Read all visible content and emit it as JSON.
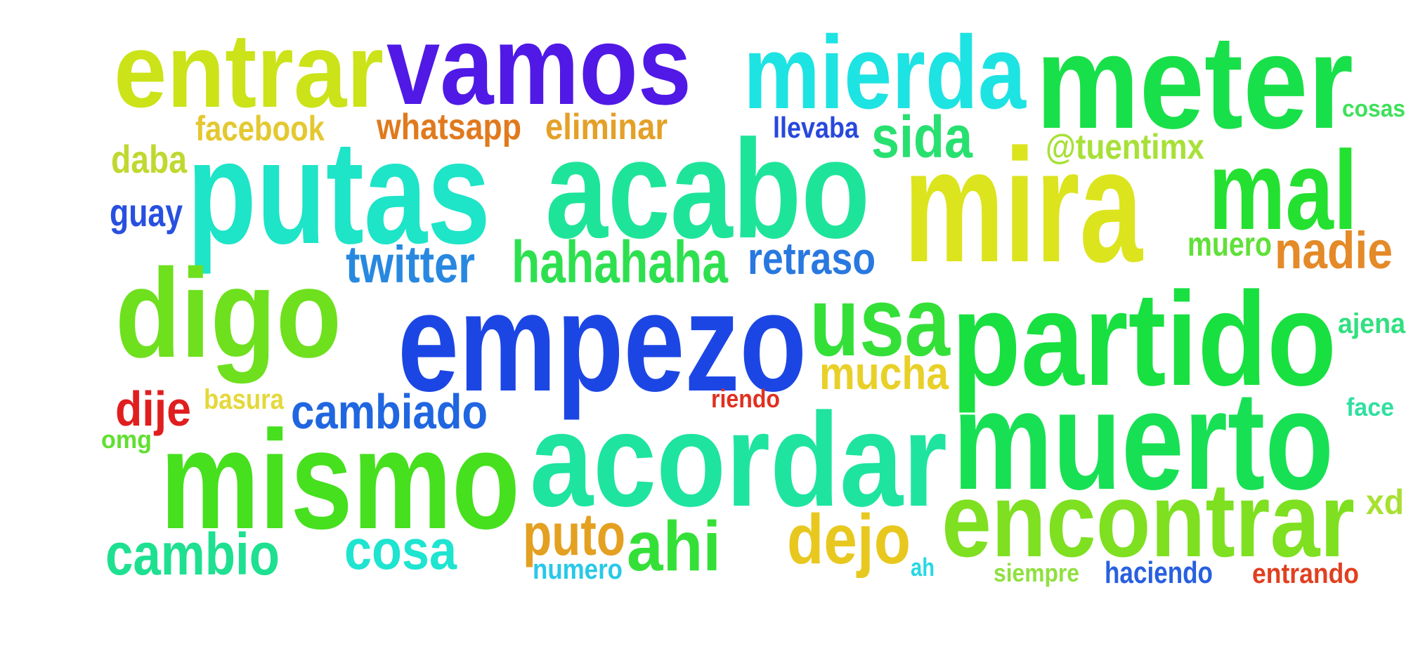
{
  "words": [
    {
      "id": "entrar",
      "text": "entrar",
      "color": "#cbe318"
    },
    {
      "id": "vamos",
      "text": "vamos",
      "color": "#5019e6"
    },
    {
      "id": "mierda",
      "text": "mierda",
      "color": "#1ee3e3"
    },
    {
      "id": "meter",
      "text": "meter",
      "color": "#18e04a"
    },
    {
      "id": "cosas",
      "text": "cosas",
      "color": "#3ee05a"
    },
    {
      "id": "facebook",
      "text": "facebook",
      "color": "#e4c830"
    },
    {
      "id": "whatsapp",
      "text": "whatsapp",
      "color": "#e07a1e"
    },
    {
      "id": "eliminar",
      "text": "eliminar",
      "color": "#e4a028"
    },
    {
      "id": "llevaba",
      "text": "llevaba",
      "color": "#2848dc"
    },
    {
      "id": "sida",
      "text": "sida",
      "color": "#28e070"
    },
    {
      "id": "tuentimx",
      "text": "@tuentimx",
      "color": "#a8e038"
    },
    {
      "id": "daba",
      "text": "daba",
      "color": "#c0d830"
    },
    {
      "id": "putas",
      "text": "putas",
      "color": "#1ee4c8"
    },
    {
      "id": "acabo",
      "text": "acabo",
      "color": "#1ee49a"
    },
    {
      "id": "mira",
      "text": "mira",
      "color": "#dce41e"
    },
    {
      "id": "mal",
      "text": "mal",
      "color": "#24e030"
    },
    {
      "id": "guay",
      "text": "guay",
      "color": "#2850e0"
    },
    {
      "id": "twitter",
      "text": "twitter",
      "color": "#2888e0"
    },
    {
      "id": "hahahaha",
      "text": "hahahaha",
      "color": "#2ee050"
    },
    {
      "id": "retraso",
      "text": "retraso",
      "color": "#2878e0"
    },
    {
      "id": "muero",
      "text": "muero",
      "color": "#60e038"
    },
    {
      "id": "nadie",
      "text": "nadie",
      "color": "#e48a28"
    },
    {
      "id": "digo",
      "text": "digo",
      "color": "#6ee01e"
    },
    {
      "id": "empezo",
      "text": "empezo",
      "color": "#1c46e4"
    },
    {
      "id": "usa",
      "text": "usa",
      "color": "#34e038"
    },
    {
      "id": "partido",
      "text": "partido",
      "color": "#18e040"
    },
    {
      "id": "ajena",
      "text": "ajena",
      "color": "#30e080"
    },
    {
      "id": "mucha",
      "text": "mucha",
      "color": "#e8d028"
    },
    {
      "id": "dije",
      "text": "dije",
      "color": "#e01e1e"
    },
    {
      "id": "basura",
      "text": "basura",
      "color": "#e4d83a"
    },
    {
      "id": "cambiado",
      "text": "cambiado",
      "color": "#2066e0"
    },
    {
      "id": "riendo",
      "text": "riendo",
      "color": "#e03020"
    },
    {
      "id": "muerto",
      "text": "muerto",
      "color": "#18e054"
    },
    {
      "id": "face",
      "text": "face",
      "color": "#30e0a0"
    },
    {
      "id": "omg",
      "text": "omg",
      "color": "#60e030"
    },
    {
      "id": "mismo",
      "text": "mismo",
      "color": "#46e01e"
    },
    {
      "id": "acordar",
      "text": "acordar",
      "color": "#1ee4a0"
    },
    {
      "id": "encontrar",
      "text": "encontrar",
      "color": "#7ee020"
    },
    {
      "id": "xd",
      "text": "xd",
      "color": "#a8e030"
    },
    {
      "id": "cambio",
      "text": "cambio",
      "color": "#1ee090"
    },
    {
      "id": "cosa",
      "text": "cosa",
      "color": "#1ee4d0"
    },
    {
      "id": "puto",
      "text": "puto",
      "color": "#e4a020"
    },
    {
      "id": "ahi",
      "text": "ahi",
      "color": "#34e038"
    },
    {
      "id": "dejo",
      "text": "dejo",
      "color": "#e8c81e"
    },
    {
      "id": "numero",
      "text": "numero",
      "color": "#28c8e8"
    },
    {
      "id": "ah",
      "text": "ah",
      "color": "#28d8e4"
    },
    {
      "id": "siempre",
      "text": "siempre",
      "color": "#90e040"
    },
    {
      "id": "haciendo",
      "text": "haciendo",
      "color": "#2860e0"
    },
    {
      "id": "entrando",
      "text": "entrando",
      "color": "#e04020"
    }
  ]
}
